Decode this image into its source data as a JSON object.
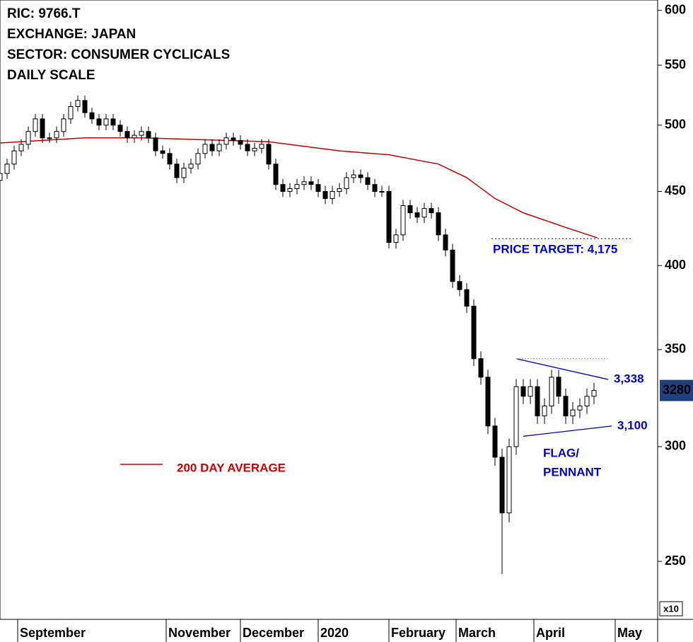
{
  "chart_data": {
    "type": "candlestick",
    "header": [
      "RIC: 9766.T",
      "EXCHANGE: JAPAN",
      "SECTOR: CONSUMER CYCLICALS",
      "DAILY SCALE"
    ],
    "multiplier": "x10",
    "log_scale": true,
    "ylim": [
      228,
      610
    ],
    "yticks": [
      250,
      300,
      350,
      400,
      450,
      500,
      550,
      600
    ],
    "xlim": [
      0,
      186
    ],
    "xticks": [
      {
        "value": 5,
        "label": "September"
      },
      {
        "value": 47,
        "label": "November"
      },
      {
        "value": 68,
        "label": "December"
      },
      {
        "value": 90,
        "label": "2020"
      },
      {
        "value": 110,
        "label": "February"
      },
      {
        "value": 129,
        "label": "March"
      },
      {
        "value": 151,
        "label": "April"
      },
      {
        "value": 174,
        "label": "May"
      }
    ],
    "up_color": "#ffffff",
    "down_color": "#000000",
    "x": [
      0,
      2,
      4,
      6,
      8,
      10,
      12,
      14,
      16,
      18,
      20,
      22,
      24,
      26,
      28,
      30,
      32,
      34,
      36,
      38,
      40,
      42,
      44,
      46,
      48,
      50,
      52,
      54,
      56,
      58,
      60,
      62,
      64,
      66,
      68,
      70,
      72,
      74,
      76,
      78,
      80,
      82,
      84,
      86,
      88,
      90,
      92,
      94,
      96,
      98,
      100,
      102,
      104,
      106,
      108,
      110,
      112,
      114,
      116,
      118,
      120,
      122,
      124,
      126,
      128,
      130,
      132,
      134,
      136,
      138,
      140,
      142,
      144,
      146,
      148,
      150,
      152,
      154,
      156,
      158,
      160,
      162,
      164,
      166,
      168
    ],
    "open": [
      458,
      463,
      470,
      480,
      485,
      495,
      505,
      490,
      490,
      495,
      505,
      515,
      520,
      510,
      505,
      500,
      505,
      500,
      495,
      490,
      492,
      495,
      490,
      480,
      478,
      470,
      460,
      467,
      470,
      478,
      485,
      480,
      485,
      490,
      488,
      485,
      480,
      482,
      485,
      470,
      455,
      450,
      452,
      455,
      457,
      455,
      450,
      445,
      450,
      452,
      460,
      462,
      460,
      455,
      450,
      450,
      415,
      420,
      440,
      435,
      432,
      438,
      435,
      420,
      410,
      390,
      385,
      375,
      345,
      335,
      310,
      295,
      270,
      300,
      330,
      325,
      330,
      315,
      320,
      335,
      325,
      315,
      318,
      320,
      325
    ],
    "high": [
      467,
      474,
      484,
      489,
      499,
      509,
      509,
      494,
      499,
      509,
      519,
      524,
      524,
      514,
      509,
      509,
      509,
      504,
      499,
      496,
      499,
      499,
      494,
      484,
      482,
      474,
      471,
      474,
      482,
      489,
      489,
      489,
      494,
      494,
      492,
      489,
      486,
      489,
      489,
      474,
      459,
      456,
      459,
      461,
      461,
      459,
      454,
      454,
      456,
      464,
      466,
      466,
      464,
      459,
      454,
      454,
      424,
      444,
      444,
      439,
      442,
      442,
      439,
      424,
      414,
      394,
      389,
      379,
      349,
      339,
      314,
      299,
      304,
      334,
      334,
      334,
      334,
      324,
      339,
      339,
      329,
      322,
      324,
      329,
      332
    ],
    "low": [
      454,
      459,
      466,
      476,
      481,
      491,
      486,
      486,
      486,
      491,
      501,
      511,
      506,
      501,
      496,
      496,
      496,
      491,
      486,
      486,
      488,
      486,
      476,
      474,
      466,
      456,
      456,
      463,
      466,
      474,
      476,
      476,
      481,
      484,
      481,
      476,
      476,
      478,
      466,
      451,
      446,
      446,
      448,
      451,
      451,
      446,
      441,
      441,
      446,
      448,
      456,
      456,
      451,
      446,
      446,
      411,
      411,
      416,
      431,
      428,
      428,
      431,
      416,
      406,
      386,
      381,
      371,
      341,
      331,
      306,
      291,
      245,
      266,
      296,
      321,
      321,
      311,
      311,
      316,
      321,
      311,
      311,
      314,
      316,
      321
    ],
    "close": [
      463,
      470,
      480,
      485,
      495,
      505,
      490,
      490,
      495,
      505,
      515,
      520,
      510,
      505,
      500,
      505,
      500,
      495,
      490,
      492,
      495,
      490,
      480,
      478,
      470,
      460,
      467,
      470,
      478,
      485,
      480,
      485,
      490,
      488,
      485,
      480,
      482,
      485,
      470,
      455,
      450,
      452,
      455,
      457,
      455,
      450,
      445,
      450,
      452,
      460,
      462,
      460,
      455,
      450,
      450,
      415,
      420,
      440,
      435,
      432,
      438,
      435,
      420,
      410,
      390,
      385,
      375,
      345,
      335,
      310,
      295,
      270,
      300,
      330,
      325,
      330,
      315,
      320,
      335,
      325,
      315,
      318,
      320,
      325,
      328
    ],
    "moving_average": {
      "name": "200 DAY AVERAGE",
      "color": "#cc0000",
      "x": [
        0,
        24,
        40,
        76,
        96,
        110,
        124,
        132,
        140,
        148,
        160,
        169
      ],
      "values": [
        486,
        490,
        490,
        487,
        480,
        477,
        470,
        460,
        445,
        435,
        425,
        418
      ]
    },
    "last_price": {
      "value": 328,
      "label": "3280",
      "color": "#1f3f7f"
    },
    "annotation_color": "#0000cc",
    "trendlines": [
      {
        "x": [
          146,
          172
        ],
        "values": [
          345,
          333.8
        ],
        "label": "3,338"
      },
      {
        "x": [
          148,
          173
        ],
        "values": [
          305,
          310
        ],
        "label": "3,100"
      }
    ],
    "resistance": {
      "x": [
        146,
        172
      ],
      "value": 345
    },
    "price_target": {
      "x": [
        139,
        179
      ],
      "value": 417.5,
      "label": "PRICE TARGET: 4,175"
    },
    "pattern_label": [
      "FLAG/",
      "PENNANT"
    ]
  }
}
